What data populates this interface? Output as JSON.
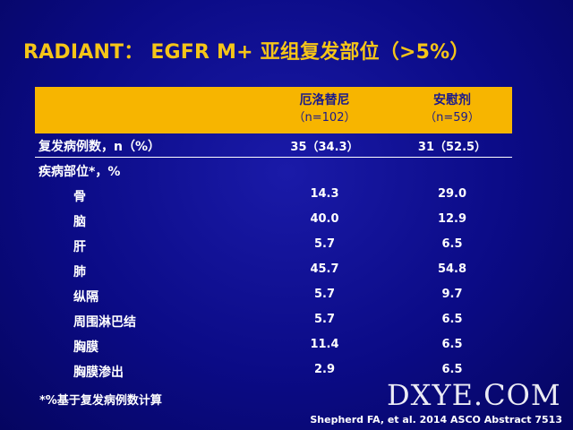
{
  "slide": {
    "title": "RADIANT： EGFR M+ 亚组复发部位（>5%）",
    "table": {
      "columns": [
        {
          "name": "厄洛替尼",
          "n": "（n=102）"
        },
        {
          "name": "安慰剂",
          "n": "（n=59）"
        }
      ],
      "summary_row": {
        "label": "复发病例数，n（%）",
        "v1": "35（34.3）",
        "v2": "31（52.5）"
      },
      "section_label": "疾病部位*，%",
      "rows": [
        {
          "label": "骨",
          "v1": "14.3",
          "v2": "29.0"
        },
        {
          "label": "脑",
          "v1": "40.0",
          "v2": "12.9"
        },
        {
          "label": "肝",
          "v1": "5.7",
          "v2": "6.5"
        },
        {
          "label": "肺",
          "v1": "45.7",
          "v2": "54.8"
        },
        {
          "label": "纵隔",
          "v1": "5.7",
          "v2": "9.7"
        },
        {
          "label": "周围淋巴结",
          "v1": "5.7",
          "v2": "6.5"
        },
        {
          "label": "胸膜",
          "v1": "11.4",
          "v2": "6.5"
        },
        {
          "label": "胸膜渗出",
          "v1": "2.9",
          "v2": "6.5"
        }
      ]
    },
    "footnote": "*%基于复发病例数计算",
    "watermark": "DXYE.COM",
    "citation": "Shepherd FA, et al. 2014 ASCO Abstract 7513"
  }
}
